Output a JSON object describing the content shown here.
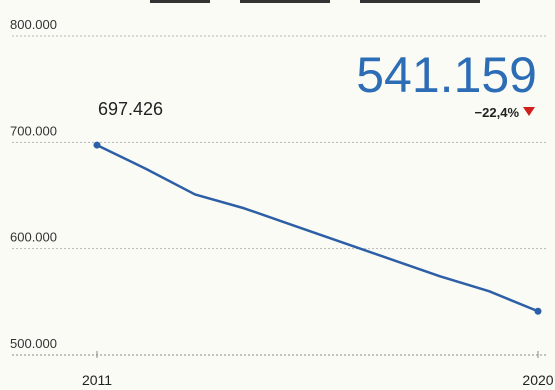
{
  "chart_data": {
    "type": "line",
    "ylim": [
      500000,
      800000
    ],
    "y_ticks": [
      {
        "value": 800000,
        "label": "800.000"
      },
      {
        "value": 700000,
        "label": "700.000"
      },
      {
        "value": 600000,
        "label": "600.000"
      },
      {
        "value": 500000,
        "label": "500.000"
      }
    ],
    "x_ticks": [
      {
        "value": 2011,
        "label": "2011"
      },
      {
        "value": 2020,
        "label": "2020"
      }
    ],
    "xlim": [
      2011,
      2020
    ],
    "grid": true,
    "series": [
      {
        "color": "#2d5fa6",
        "x": [
          2011,
          2012,
          2013,
          2014,
          2015,
          2016,
          2017,
          2018,
          2019,
          2020
        ],
        "y": [
          697426,
          675000,
          651000,
          638000,
          622000,
          606000,
          590000,
          574000,
          560000,
          541159
        ]
      }
    ],
    "annotations": {
      "start_value": "697.426",
      "end_value": "541.159",
      "change": "−22,4%",
      "change_color": "#d0201c",
      "end_color": "#2d6db5"
    }
  }
}
